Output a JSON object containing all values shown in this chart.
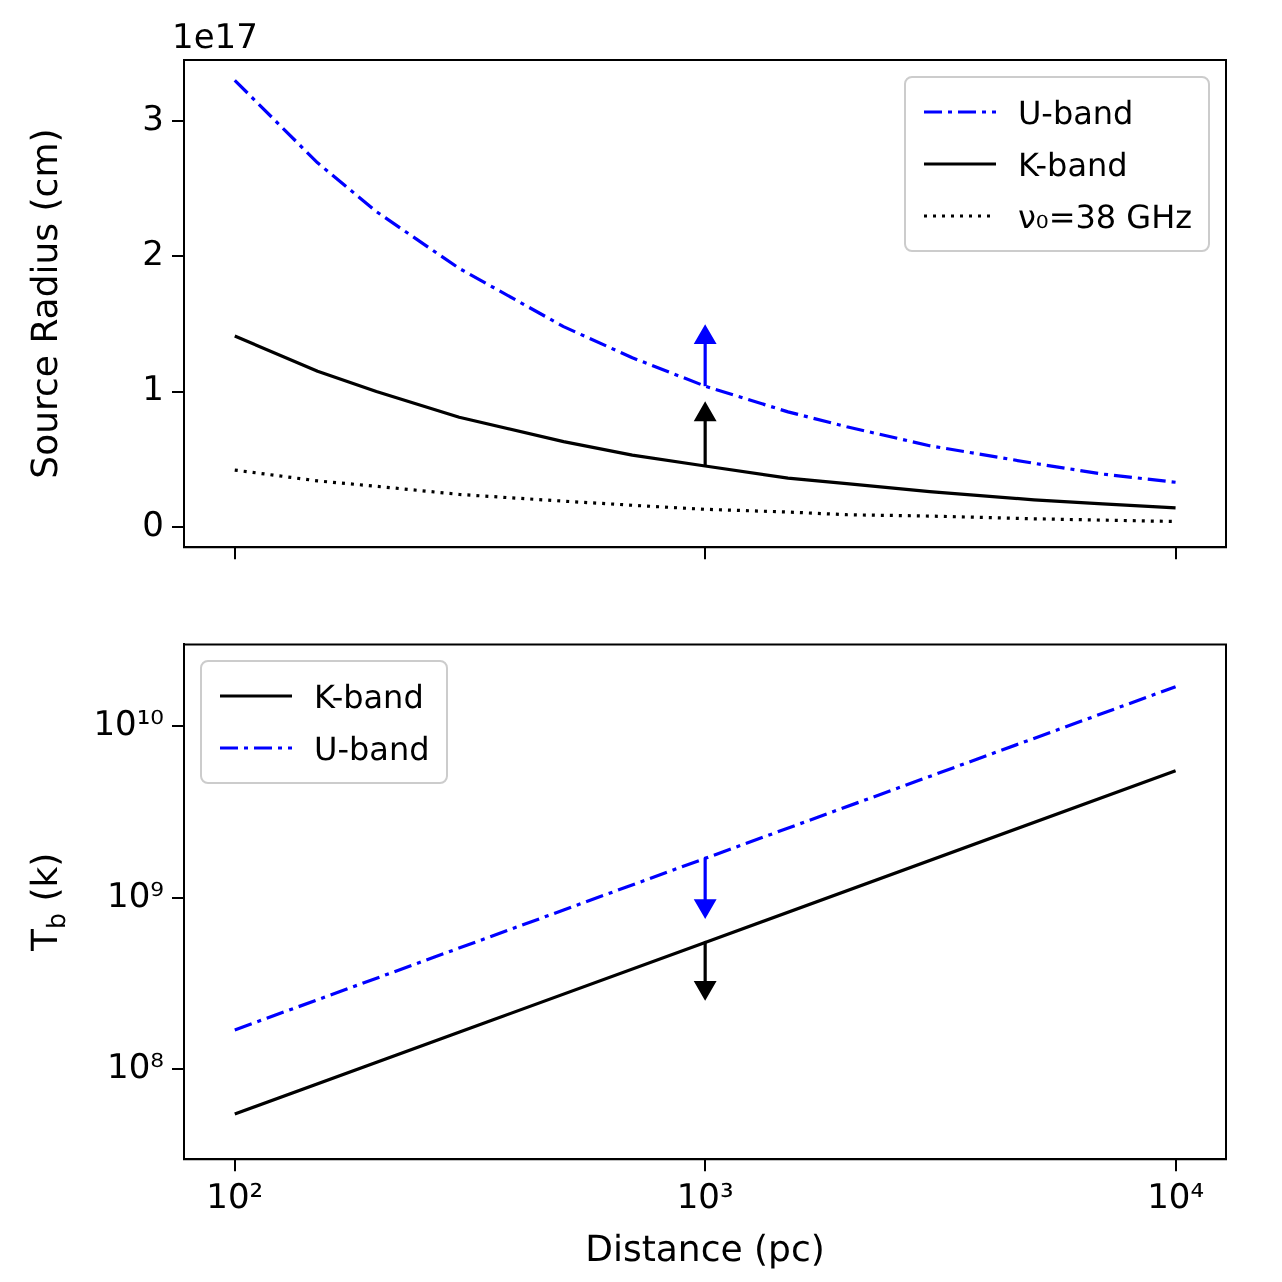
{
  "chart_data": [
    {
      "type": "line",
      "ylabel": "Source Radius (cm)",
      "annotations": [
        "1e17"
      ],
      "log": "x",
      "xlim": [
        78,
        12800
      ],
      "xticks": [
        {
          "value": 100,
          "label": null
        },
        {
          "value": 1000,
          "label": null
        },
        {
          "value": 10000,
          "label": null
        }
      ],
      "ylim": [
        -0.15,
        3.45
      ],
      "yticks": [
        0,
        1,
        2,
        3
      ],
      "tick_labels": "y",
      "grid": false,
      "legend": "top right",
      "series": [
        {
          "name": "U-band",
          "color": "#0000ff",
          "line_style": "dashdot",
          "x": [
            100,
            150,
            200,
            300,
            500,
            700,
            1000,
            1500,
            2000,
            3000,
            5000,
            7000,
            10000
          ],
          "values": [
            3.3,
            2.69,
            2.33,
            1.91,
            1.48,
            1.25,
            1.04,
            0.85,
            0.74,
            0.6,
            0.47,
            0.39,
            0.33
          ]
        },
        {
          "name": "K-band",
          "color": "#000000",
          "line_style": "solid",
          "x": [
            100,
            150,
            200,
            300,
            500,
            700,
            1000,
            1500,
            2000,
            3000,
            5000,
            7000,
            10000
          ],
          "values": [
            1.41,
            1.15,
            1.0,
            0.81,
            0.63,
            0.53,
            0.45,
            0.36,
            0.32,
            0.26,
            0.2,
            0.17,
            0.14
          ]
        },
        {
          "name": "ν₀=38 GHz",
          "color": "#000000",
          "line_style": "dotted",
          "x": [
            100,
            150,
            200,
            300,
            500,
            700,
            1000,
            1500,
            2000,
            3000,
            5000,
            7000,
            10000
          ],
          "values": [
            0.42,
            0.34,
            0.3,
            0.24,
            0.19,
            0.16,
            0.13,
            0.11,
            0.09,
            0.08,
            0.06,
            0.05,
            0.04
          ]
        },
        {
          "color": "#0000ff",
          "line_style": "solid",
          "marker": "triangle",
          "x": [
            1000,
            1000
          ],
          "values": [
            1.04,
            1.4
          ]
        },
        {
          "color": "#000000",
          "line_style": "solid",
          "marker": "triangle",
          "x": [
            1000,
            1000
          ],
          "values": [
            0.45,
            0.83
          ]
        }
      ]
    },
    {
      "type": "line",
      "xlabel": "Distance (pc)",
      "ylabel": "T$_{b}$ (k)",
      "log": "xy",
      "xlim": [
        78,
        12800
      ],
      "xticks": [
        {
          "value": 100,
          "label": "10²"
        },
        {
          "value": 1000,
          "label": "10³"
        },
        {
          "value": 10000,
          "label": "10⁴"
        }
      ],
      "ylim": [
        30000000,
        30000000000
      ],
      "yticks": [
        {
          "value": 100000000,
          "label": "10⁸"
        },
        {
          "value": 1000000000,
          "label": "10⁹"
        },
        {
          "value": 10000000000,
          "label": "10¹⁰"
        }
      ],
      "grid": false,
      "legend": "top left",
      "series": [
        {
          "name": "K-band",
          "color": "#000000",
          "line_style": "solid",
          "x": [
            100,
            1000,
            10000
          ],
          "values": [
            55000000,
            550000000,
            5500000000
          ]
        },
        {
          "name": "U-band",
          "color": "#0000ff",
          "line_style": "dashdot",
          "x": [
            100,
            1000,
            10000
          ],
          "values": [
            170000000,
            1700000000,
            17000000000
          ]
        },
        {
          "color": "#0000ff",
          "line_style": "solid",
          "marker": "triangle",
          "x": [
            1000,
            1000
          ],
          "values": [
            1700000000,
            900000000
          ]
        },
        {
          "color": "#000000",
          "line_style": "solid",
          "marker": "triangle",
          "x": [
            1000,
            1000
          ],
          "values": [
            550000000,
            300000000
          ]
        }
      ]
    }
  ]
}
